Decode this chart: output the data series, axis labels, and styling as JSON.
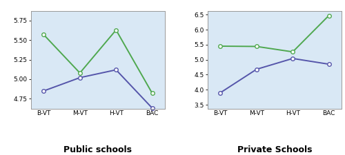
{
  "x_labels": [
    "B-VT",
    "M-VT",
    "H-VT",
    "BAC"
  ],
  "public": {
    "green": [
      5.57,
      5.08,
      5.63,
      4.82
    ],
    "blue": [
      4.85,
      5.02,
      5.12,
      4.63
    ]
  },
  "private": {
    "green": [
      5.45,
      5.44,
      5.26,
      6.47
    ],
    "blue": [
      3.9,
      4.68,
      5.04,
      4.85
    ]
  },
  "public_ylim": [
    4.625,
    5.875
  ],
  "public_yticks": [
    4.75,
    5.0,
    5.25,
    5.5,
    5.75
  ],
  "private_ylim": [
    3.375,
    6.625
  ],
  "private_yticks": [
    3.5,
    4.0,
    4.5,
    5.0,
    5.5,
    6.0,
    6.5
  ],
  "public_title": "Public schools",
  "private_title": "Private Schools",
  "green_color": "#4fa84f",
  "blue_color": "#5555aa",
  "bg_color": "#d9e8f5",
  "marker": "o",
  "markersize": 4,
  "linewidth": 1.4,
  "title_fontsize": 9,
  "tick_fontsize": 6.5,
  "label_fontsize": 6.5
}
